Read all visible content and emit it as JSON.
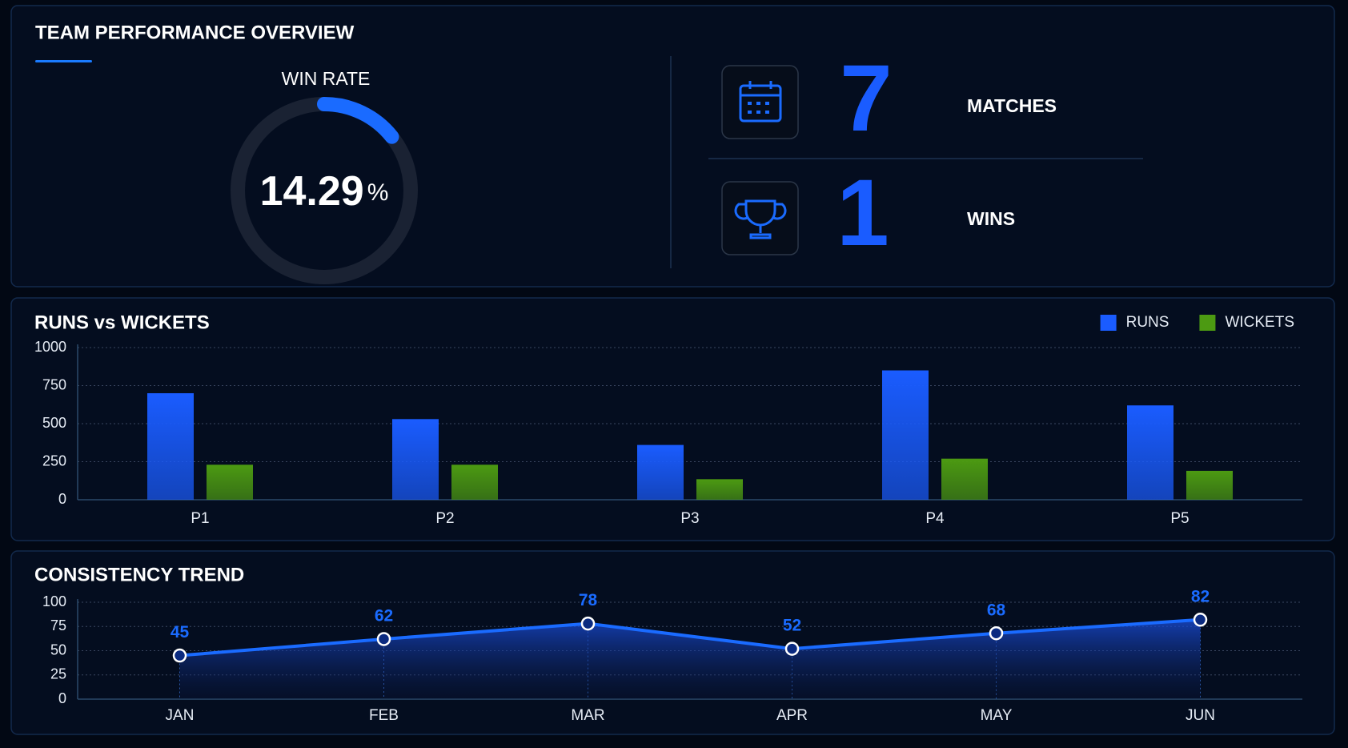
{
  "overview": {
    "title": "TEAM PERFORMANCE OVERVIEW",
    "win_rate": {
      "label": "WIN RATE",
      "value": 14.29,
      "unit": "%",
      "color": "#1a6bff"
    },
    "stats": [
      {
        "value": 7,
        "label": "MATCHES"
      },
      {
        "value": 1,
        "label": "WINS"
      }
    ]
  },
  "chart_data": [
    {
      "type": "bar",
      "title": "RUNS vs WICKETS",
      "categories": [
        "P1",
        "P2",
        "P3",
        "P4",
        "P5"
      ],
      "series": [
        {
          "name": "RUNS",
          "color": "#1a5cff",
          "values": [
            700,
            530,
            360,
            850,
            620
          ]
        },
        {
          "name": "WICKETS",
          "color": "#4c9a12",
          "values": [
            230,
            230,
            135,
            270,
            190
          ]
        }
      ],
      "ylim": [
        0,
        1000
      ],
      "yticks": [
        0,
        250,
        500,
        750,
        1000
      ],
      "grid": true,
      "legend": "top-right"
    },
    {
      "type": "line",
      "title": "CONSISTENCY TREND",
      "categories": [
        "JAN",
        "FEB",
        "MAR",
        "APR",
        "MAY",
        "JUN"
      ],
      "values": [
        45,
        62,
        78,
        52,
        68,
        82
      ],
      "color": "#1a6bff",
      "ylim": [
        0,
        100
      ],
      "yticks": [
        0,
        25,
        50,
        75,
        100
      ],
      "grid": true
    }
  ]
}
